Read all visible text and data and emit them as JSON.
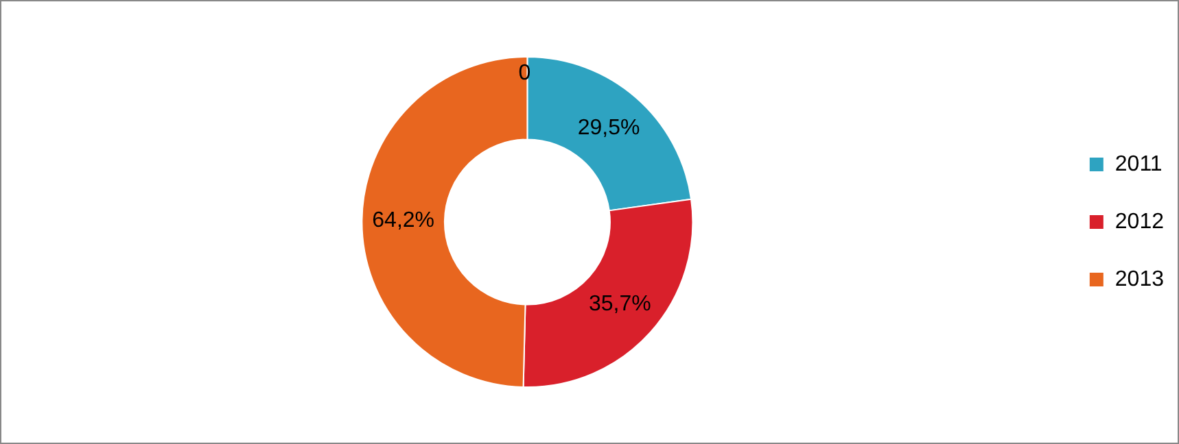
{
  "chart_data": {
    "type": "donut",
    "categories": [
      "2011",
      "2012",
      "2013"
    ],
    "values": [
      29.5,
      35.7,
      64.2
    ],
    "colors": [
      "#2ea3c1",
      "#d9202b",
      "#e8661f"
    ],
    "value_labels": [
      "29,5%",
      "35,7%",
      "64,2%"
    ],
    "annotations": [
      "0"
    ],
    "legend": "right"
  }
}
